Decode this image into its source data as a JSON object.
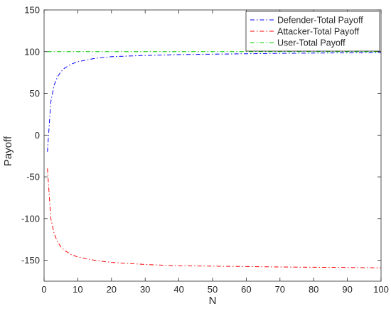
{
  "chart_data": {
    "type": "line",
    "xlabel": "N",
    "ylabel": "Payoff",
    "xlim": [
      0,
      100
    ],
    "ylim": [
      -175,
      150
    ],
    "xticks": [
      0,
      10,
      20,
      30,
      40,
      50,
      60,
      70,
      80,
      90,
      100
    ],
    "yticks": [
      -150,
      -100,
      -50,
      0,
      50,
      100,
      150
    ],
    "legend_position": "top-right",
    "series": [
      {
        "name": "Defender-Total Payoff",
        "color": "#0000ff",
        "style": "dash-dot",
        "x": [
          1,
          2,
          3,
          4,
          5,
          6,
          8,
          10,
          15,
          20,
          30,
          40,
          50,
          60,
          70,
          80,
          90,
          100
        ],
        "y": [
          -20,
          40,
          60,
          70,
          76,
          80,
          85,
          88,
          92,
          94,
          95.5,
          96.5,
          97,
          97.5,
          98,
          98.3,
          98.6,
          99
        ]
      },
      {
        "name": "Attacker-Total Payoff",
        "color": "#ff0000",
        "style": "dash-dot",
        "x": [
          1,
          2,
          3,
          4,
          5,
          6,
          8,
          10,
          15,
          20,
          30,
          40,
          50,
          60,
          70,
          80,
          90,
          100
        ],
        "y": [
          -40,
          -100,
          -118,
          -128,
          -134,
          -138,
          -143,
          -146,
          -150,
          -152.5,
          -155,
          -156.5,
          -157,
          -157.5,
          -158,
          -158.3,
          -158.6,
          -159
        ]
      },
      {
        "name": "User-Total Payoff",
        "color": "#00cc00",
        "style": "dash-dot",
        "x": [
          1,
          100
        ],
        "y": [
          100,
          100
        ]
      }
    ]
  }
}
